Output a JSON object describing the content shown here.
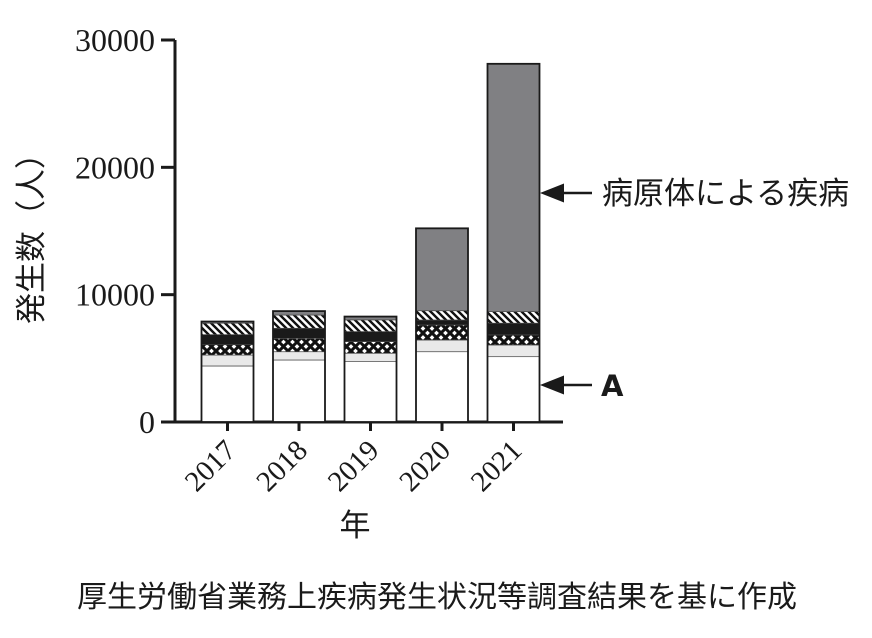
{
  "figure": {
    "y_axis_label": "発生数（人）",
    "x_axis_label": "年",
    "caption": "厚生労働省業務上疾病発生状況等調査結果を基に作成",
    "annotations": {
      "pathogen_label": "病原体による疾病",
      "a_label": "A"
    }
  },
  "colors": {
    "ink": "#1a1a1a",
    "bar_outline": "#1a1a1a",
    "pathogen_gray": "#808083",
    "light_gray_segment": "#e9e9e9",
    "background": "#ffffff"
  },
  "chart_data": {
    "type": "bar",
    "stacked": true,
    "title": "",
    "xlabel": "年",
    "ylabel": "発生数（人）",
    "categories": [
      "2017",
      "2018",
      "2019",
      "2020",
      "2021"
    ],
    "y_ticks": [
      0,
      10000,
      20000,
      30000
    ],
    "ylim": [
      0,
      30000
    ],
    "grid": false,
    "legend_position": "none",
    "series": [
      {
        "name": "A",
        "label_shown": "A",
        "pattern": "solid",
        "color": "#ffffff",
        "values": [
          4400,
          4870,
          4740,
          5520,
          5130
        ]
      },
      {
        "name": "light-gray-segment",
        "label_shown": "",
        "pattern": "solid",
        "color": "#e9e9e9",
        "values": [
          860,
          650,
          660,
          920,
          920
        ]
      },
      {
        "name": "crosshatch-segment",
        "label_shown": "",
        "pattern": "crosshatch",
        "color": "#111111",
        "values": [
          810,
          1050,
          910,
          1180,
          790
        ]
      },
      {
        "name": "black-segment",
        "label_shown": "",
        "pattern": "solid",
        "color": "#1a1a1a",
        "values": [
          790,
          790,
          790,
          390,
          920
        ]
      },
      {
        "name": "diagonal-stripe-segment",
        "label_shown": "",
        "pattern": "diagonal-stripes",
        "color": "#111111",
        "values": [
          900,
          1040,
          920,
          730,
          910
        ]
      },
      {
        "name": "pathogen-disease-segment",
        "label_shown": "病原体による疾病",
        "pattern": "solid",
        "color": "#808083",
        "values": [
          130,
          310,
          260,
          6470,
          19460
        ]
      }
    ],
    "totals": [
      7890,
      8710,
      8280,
      15210,
      28130
    ],
    "source_note": "厚生労働省業務上疾病発生状況等調査結果を基に作成"
  }
}
